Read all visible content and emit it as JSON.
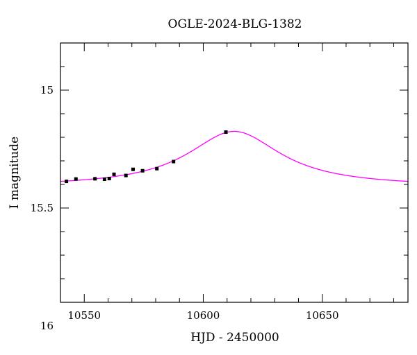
{
  "chart_data": {
    "type": "scatter",
    "title": "OGLE-2024-BLG-1382",
    "xlabel": "HJD - 2450000",
    "ylabel": "I magnitude",
    "xlim": [
      10540,
      10686
    ],
    "ylim": [
      15.9,
      14.8
    ],
    "y_inverted": true,
    "xticks_major": [
      10550,
      10600,
      10650
    ],
    "xticks_minor_step": 10,
    "yticks_major": [
      15,
      15.5,
      16
    ],
    "yticks_minor_step": 0.1,
    "colors": {
      "model": "#ff00ff",
      "points": "#000000"
    },
    "model_curve": {
      "baseline_mag": 15.41,
      "peak_mag": 15.175,
      "t0": 10613,
      "width": 24
    },
    "points": [
      {
        "x": 10542.5,
        "y": 15.387,
        "err": 0.005
      },
      {
        "x": 10546.5,
        "y": 15.377,
        "err": 0.005
      },
      {
        "x": 10554.5,
        "y": 15.376,
        "err": 0.004
      },
      {
        "x": 10558.5,
        "y": 15.378,
        "err": 0.005
      },
      {
        "x": 10560.5,
        "y": 15.375,
        "err": 0.004
      },
      {
        "x": 10562.5,
        "y": 15.357,
        "err": 0.004
      },
      {
        "x": 10567.5,
        "y": 15.362,
        "err": 0.004
      },
      {
        "x": 10570.5,
        "y": 15.336,
        "err": 0.005
      },
      {
        "x": 10574.5,
        "y": 15.342,
        "err": 0.004
      },
      {
        "x": 10580.5,
        "y": 15.333,
        "err": 0.004
      },
      {
        "x": 10587.5,
        "y": 15.303,
        "err": 0.005
      },
      {
        "x": 10609.5,
        "y": 15.178,
        "err": 0.003
      }
    ]
  }
}
